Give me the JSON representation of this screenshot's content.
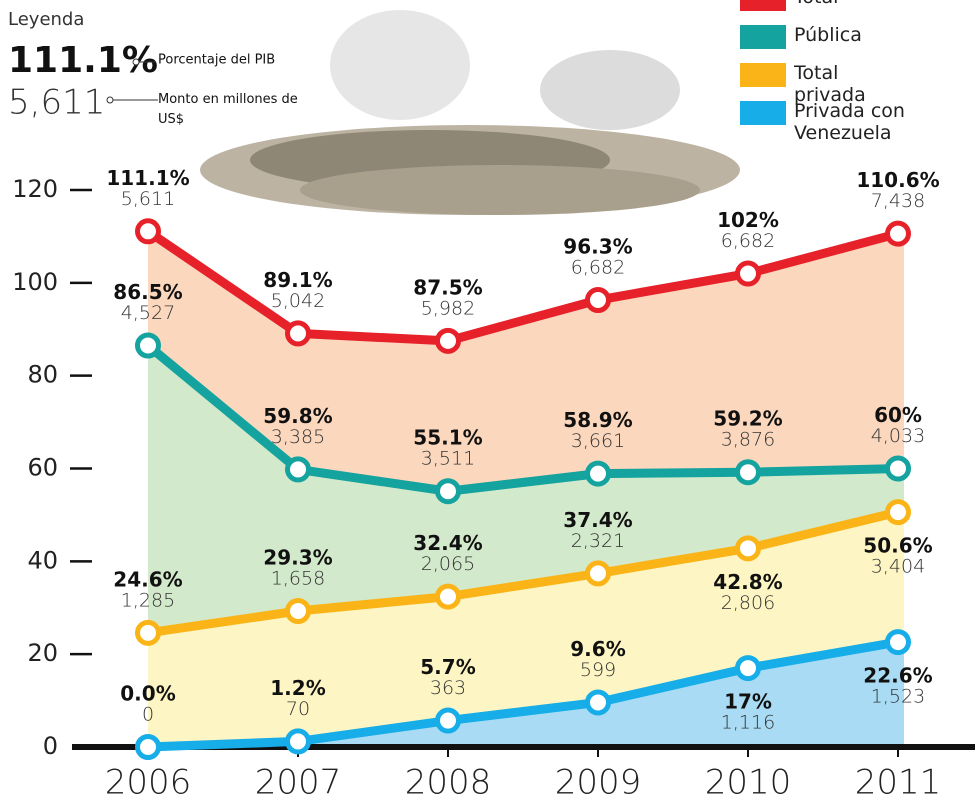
{
  "legend_key": {
    "title": "Leyenda",
    "percent_example": "111.1%",
    "percent_note": "Porcentaje del PIB",
    "amount_example": "5,611",
    "amount_note": "Monto en millones de US$"
  },
  "chart_data": {
    "type": "line",
    "categories": [
      "2006",
      "2007",
      "2008",
      "2009",
      "2010",
      "2011"
    ],
    "ylim": [
      0,
      120
    ],
    "yticks": [
      0,
      20,
      40,
      60,
      80,
      100,
      120
    ],
    "series": [
      {
        "name": "Total",
        "color": "#e62129",
        "area_color": "#fbd7bd",
        "values": [
          111.1,
          89.1,
          87.5,
          96.3,
          102,
          110.6
        ],
        "value_labels": [
          "111.1%",
          "89.1%",
          "87.5%",
          "96.3%",
          "102%",
          "110.6%"
        ],
        "amounts": [
          5611,
          5042,
          5982,
          6682,
          6682,
          7438
        ],
        "amount_labels": [
          "5,611",
          "5,042",
          "5,982",
          "6,682",
          "6,682",
          "7,438"
        ]
      },
      {
        "name": "Pública",
        "color": "#14a39e",
        "area_color": "#d3e9cb",
        "values": [
          86.5,
          59.8,
          55.1,
          58.9,
          59.2,
          60
        ],
        "value_labels": [
          "86.5%",
          "59.8%",
          "55.1%",
          "58.9%",
          "59.2%",
          "60%"
        ],
        "amounts": [
          4527,
          3385,
          3511,
          3661,
          3876,
          4033
        ],
        "amount_labels": [
          "4,527",
          "3,385",
          "3,511",
          "3,661",
          "3,876",
          "4,033"
        ]
      },
      {
        "name": "Total privada",
        "color": "#fbb417",
        "area_color": "#fdf6c4",
        "values": [
          24.6,
          29.3,
          32.4,
          37.4,
          42.8,
          50.6
        ],
        "value_labels": [
          "24.6%",
          "29.3%",
          "32.4%",
          "37.4%",
          "42.8%",
          "50.6%"
        ],
        "amounts": [
          1285,
          1658,
          2065,
          2321,
          2806,
          3404
        ],
        "amount_labels": [
          "1,285",
          "1,658",
          "2,065",
          "2,321",
          "2,806",
          "3,404"
        ]
      },
      {
        "name": "Privada con Venezuela",
        "color": "#16ade8",
        "area_color": "#a9dcf4",
        "values": [
          0,
          1.2,
          5.7,
          9.6,
          17,
          22.6
        ],
        "value_labels": [
          "0.0%",
          "1.2%",
          "5.7%",
          "9.6%",
          "17%",
          "22.6%"
        ],
        "amounts": [
          0,
          70,
          363,
          599,
          1116,
          1523
        ],
        "amount_labels": [
          "0",
          "70",
          "363",
          "599",
          "1,116",
          "1,523"
        ]
      }
    ]
  }
}
